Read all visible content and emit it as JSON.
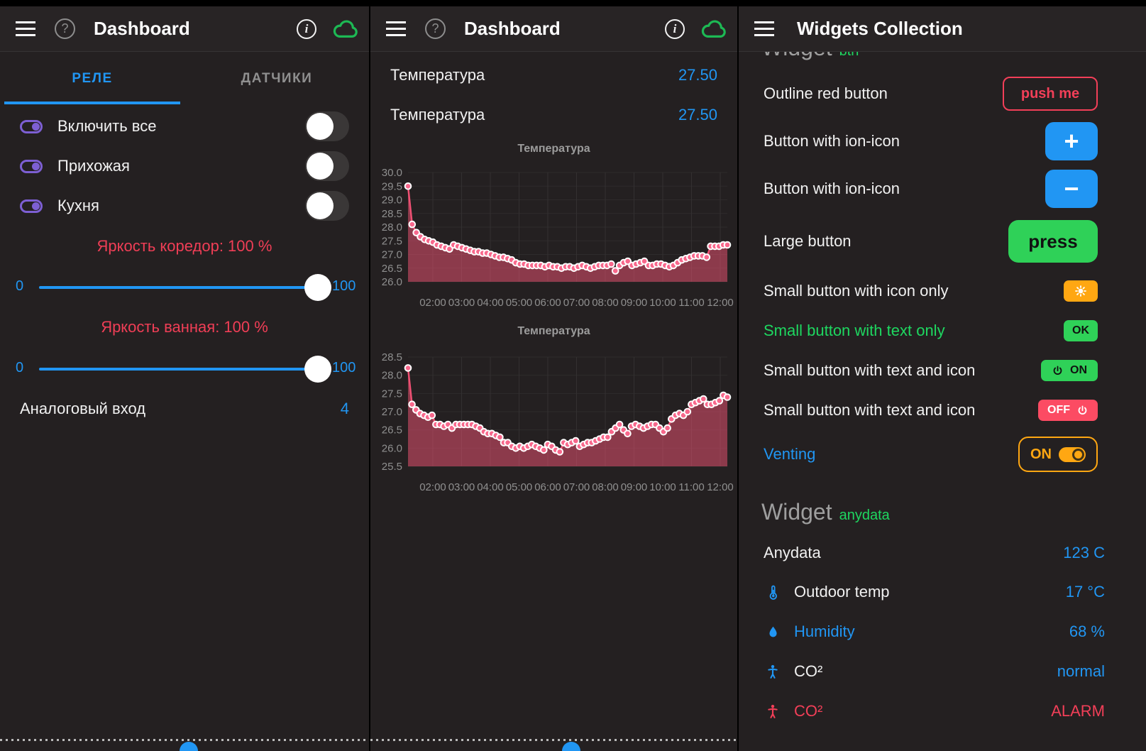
{
  "colors": {
    "accent_blue": "#2196f3",
    "button_green": "#2fd158",
    "text_green": "#1ed760",
    "orange": "#ffa712",
    "outline_red": "#f23f58",
    "pink_button": "#fc4b63",
    "purple": "#7d5fd3",
    "slider_label_red": "#f03e56",
    "chart_line": "#ef5073",
    "chart_dot": "#f8688c",
    "chart_fill": "rgba(244,84,118,0.5)",
    "cloud_green": "#1db954"
  },
  "panels": {
    "left": {
      "header": {
        "title": "Dashboard"
      },
      "tabs": [
        {
          "label": "РЕЛЕ",
          "active": true
        },
        {
          "label": "ДАТЧИКИ",
          "active": false
        }
      ],
      "switch_rows": [
        {
          "label": "Включить все",
          "state": "off"
        },
        {
          "label": "Прихожая",
          "state": "off"
        },
        {
          "label": "Кухня",
          "state": "off"
        }
      ],
      "sliders": [
        {
          "label": "Яркость коредор: 100 %",
          "min": "0",
          "max": "100",
          "value": 100
        },
        {
          "label": "Яркость ванная: 100 %",
          "min": "0",
          "max": "100",
          "value": 100
        }
      ],
      "analog": {
        "label": "Аналоговый вход",
        "value": "4"
      }
    },
    "middle": {
      "header": {
        "title": "Dashboard"
      },
      "value_rows": [
        {
          "label": "Температура",
          "value": "27.50"
        },
        {
          "label": "Температура",
          "value": "27.50"
        }
      ]
    },
    "right": {
      "header": {
        "title": "Widgets Collection"
      },
      "section_btn": {
        "title": "Widget",
        "tag": "btn"
      },
      "rows": [
        {
          "label": "Outline red button",
          "control": "push me"
        },
        {
          "label": "Button with ion-icon",
          "control": "+"
        },
        {
          "label": "Button with ion-icon",
          "control": "−"
        },
        {
          "label": "Large button",
          "control": "press"
        },
        {
          "label": "Small button with icon only",
          "control": ""
        },
        {
          "label": "Small button with text only",
          "control": "OK"
        },
        {
          "label": "Small button with text and icon",
          "control": "ON"
        },
        {
          "label": "Small button with text and icon",
          "control": "OFF"
        },
        {
          "label": "Venting",
          "control": "ON"
        }
      ],
      "section_anydata": {
        "title": "Widget",
        "tag": "anydata"
      },
      "data_rows": [
        {
          "label": "Anydata",
          "value": "123 C",
          "icon": ""
        },
        {
          "label": "Outdoor temp",
          "value": "17 °C",
          "icon": "thermometer"
        },
        {
          "label": "Humidity",
          "value": "68 %",
          "icon": "droplet"
        },
        {
          "label": "CO²",
          "value": "normal",
          "icon": "person"
        },
        {
          "label": "CO²",
          "value": "ALARM",
          "icon": "person-alarm"
        }
      ]
    }
  },
  "chart_data": [
    {
      "type": "line",
      "title": "Температура",
      "ylim": [
        26.0,
        30.0
      ],
      "yticks": [
        "30.0",
        "29.5",
        "29.0",
        "28.5",
        "28.0",
        "27.5",
        "27.0",
        "26.5",
        "26.0"
      ],
      "xlabels": [
        "02:00",
        "03:00",
        "04:00",
        "05:00",
        "06:00",
        "07:00",
        "08:00",
        "09:00",
        "10:00",
        "11:00",
        "12:00"
      ],
      "grid": true,
      "values": [
        29.5,
        28.1,
        27.8,
        27.65,
        27.55,
        27.5,
        27.45,
        27.35,
        27.3,
        27.25,
        27.2,
        27.35,
        27.3,
        27.25,
        27.2,
        27.15,
        27.1,
        27.1,
        27.05,
        27.05,
        27.0,
        26.95,
        26.9,
        26.9,
        26.85,
        26.8,
        26.7,
        26.65,
        26.65,
        26.6,
        26.6,
        26.6,
        26.6,
        26.55,
        26.6,
        26.55,
        26.55,
        26.5,
        26.55,
        26.55,
        26.5,
        26.55,
        26.6,
        26.55,
        26.5,
        26.55,
        26.6,
        26.6,
        26.6,
        26.65,
        26.4,
        26.6,
        26.7,
        26.75,
        26.6,
        26.65,
        26.7,
        26.75,
        26.6,
        26.6,
        26.65,
        26.65,
        26.6,
        26.55,
        26.6,
        26.7,
        26.8,
        26.85,
        26.9,
        26.95,
        26.95,
        26.95,
        26.9,
        27.3,
        27.3,
        27.3,
        27.35,
        27.35
      ]
    },
    {
      "type": "line",
      "title": "Температура",
      "ylim": [
        25.5,
        28.5
      ],
      "yticks": [
        "28.5",
        "28.0",
        "27.5",
        "27.0",
        "26.5",
        "26.0",
        "25.5"
      ],
      "xlabels": [
        "02:00",
        "03:00",
        "04:00",
        "05:00",
        "06:00",
        "07:00",
        "08:00",
        "09:00",
        "10:00",
        "11:00",
        "12:00"
      ],
      "grid": true,
      "values": [
        28.2,
        27.2,
        27.05,
        26.95,
        26.9,
        26.85,
        26.9,
        26.65,
        26.65,
        26.6,
        26.65,
        26.55,
        26.65,
        26.65,
        26.65,
        26.65,
        26.65,
        26.6,
        26.55,
        26.45,
        26.4,
        26.4,
        26.35,
        26.3,
        26.15,
        26.15,
        26.05,
        26.0,
        26.05,
        26.0,
        26.05,
        26.1,
        26.05,
        26.0,
        25.95,
        26.1,
        26.05,
        25.95,
        25.9,
        26.15,
        26.1,
        26.15,
        26.2,
        26.05,
        26.1,
        26.15,
        26.15,
        26.2,
        26.25,
        26.3,
        26.3,
        26.45,
        26.55,
        26.65,
        26.5,
        26.4,
        26.6,
        26.65,
        26.6,
        26.55,
        26.6,
        26.65,
        26.65,
        26.55,
        26.45,
        26.55,
        26.8,
        26.9,
        26.95,
        26.9,
        27.0,
        27.2,
        27.25,
        27.3,
        27.35,
        27.2,
        27.2,
        27.25,
        27.3,
        27.45,
        27.4
      ]
    }
  ]
}
